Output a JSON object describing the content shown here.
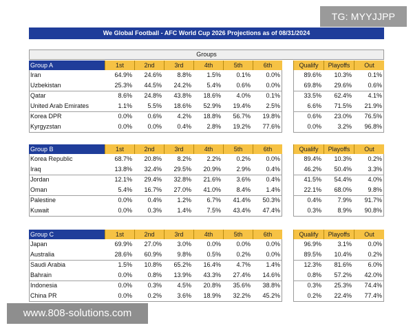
{
  "title": "We Global Football - AFC World Cup 2026 Projections as of 08/31/2024",
  "groups_label": "Groups",
  "columns": [
    "1st",
    "2nd",
    "3rd",
    "4th",
    "5th",
    "6th"
  ],
  "summary_columns": [
    "Qualify",
    "Playoffs",
    "Out"
  ],
  "watermarks": {
    "top_right": "TG: MYYJJPP",
    "bottom_left": "www.808-solutions.com"
  },
  "groups": [
    {
      "name": "Group A",
      "teams": [
        {
          "name": "Iran",
          "places": [
            "64.9%",
            "24.6%",
            "8.8%",
            "1.5%",
            "0.1%",
            "0.0%"
          ],
          "summary": [
            "89.6%",
            "10.3%",
            "0.1%"
          ]
        },
        {
          "name": "Uzbekistan",
          "places": [
            "25.3%",
            "44.5%",
            "24.2%",
            "5.4%",
            "0.6%",
            "0.0%"
          ],
          "summary": [
            "69.8%",
            "29.6%",
            "0.6%"
          ]
        },
        {
          "name": "Qatar",
          "places": [
            "8.6%",
            "24.8%",
            "43.8%",
            "18.6%",
            "4.0%",
            "0.1%"
          ],
          "summary": [
            "33.5%",
            "62.4%",
            "4.1%"
          ]
        },
        {
          "name": "United Arab Emirates",
          "places": [
            "1.1%",
            "5.5%",
            "18.6%",
            "52.9%",
            "19.4%",
            "2.5%"
          ],
          "summary": [
            "6.6%",
            "71.5%",
            "21.9%"
          ]
        },
        {
          "name": "Korea DPR",
          "places": [
            "0.0%",
            "0.6%",
            "4.2%",
            "18.8%",
            "56.7%",
            "19.8%"
          ],
          "summary": [
            "0.6%",
            "23.0%",
            "76.5%"
          ]
        },
        {
          "name": "Kyrgyzstan",
          "places": [
            "0.0%",
            "0.0%",
            "0.4%",
            "2.8%",
            "19.2%",
            "77.6%"
          ],
          "summary": [
            "0.0%",
            "3.2%",
            "96.8%"
          ]
        }
      ]
    },
    {
      "name": "Group B",
      "teams": [
        {
          "name": "Korea Republic",
          "places": [
            "68.7%",
            "20.8%",
            "8.2%",
            "2.2%",
            "0.2%",
            "0.0%"
          ],
          "summary": [
            "89.4%",
            "10.3%",
            "0.2%"
          ]
        },
        {
          "name": "Iraq",
          "places": [
            "13.8%",
            "32.4%",
            "29.5%",
            "20.9%",
            "2.9%",
            "0.4%"
          ],
          "summary": [
            "46.2%",
            "50.4%",
            "3.3%"
          ]
        },
        {
          "name": "Jordan",
          "places": [
            "12.1%",
            "29.4%",
            "32.8%",
            "21.6%",
            "3.6%",
            "0.4%"
          ],
          "summary": [
            "41.5%",
            "54.4%",
            "4.0%"
          ]
        },
        {
          "name": "Oman",
          "places": [
            "5.4%",
            "16.7%",
            "27.0%",
            "41.0%",
            "8.4%",
            "1.4%"
          ],
          "summary": [
            "22.1%",
            "68.0%",
            "9.8%"
          ]
        },
        {
          "name": "Palestine",
          "places": [
            "0.0%",
            "0.4%",
            "1.2%",
            "6.7%",
            "41.4%",
            "50.3%"
          ],
          "summary": [
            "0.4%",
            "7.9%",
            "91.7%"
          ]
        },
        {
          "name": "Kuwait",
          "places": [
            "0.0%",
            "0.3%",
            "1.4%",
            "7.5%",
            "43.4%",
            "47.4%"
          ],
          "summary": [
            "0.3%",
            "8.9%",
            "90.8%"
          ]
        }
      ]
    },
    {
      "name": "Group C",
      "teams": [
        {
          "name": "Japan",
          "places": [
            "69.9%",
            "27.0%",
            "3.0%",
            "0.0%",
            "0.0%",
            "0.0%"
          ],
          "summary": [
            "96.9%",
            "3.1%",
            "0.0%"
          ]
        },
        {
          "name": "Australia",
          "places": [
            "28.6%",
            "60.9%",
            "9.8%",
            "0.5%",
            "0.2%",
            "0.0%"
          ],
          "summary": [
            "89.5%",
            "10.4%",
            "0.2%"
          ]
        },
        {
          "name": "Saudi Arabia",
          "places": [
            "1.5%",
            "10.8%",
            "65.2%",
            "16.4%",
            "4.7%",
            "1.4%"
          ],
          "summary": [
            "12.3%",
            "81.6%",
            "6.0%"
          ]
        },
        {
          "name": "Bahrain",
          "places": [
            "0.0%",
            "0.8%",
            "13.9%",
            "43.3%",
            "27.4%",
            "14.6%"
          ],
          "summary": [
            "0.8%",
            "57.2%",
            "42.0%"
          ]
        },
        {
          "name": "Indonesia",
          "places": [
            "0.0%",
            "0.3%",
            "4.5%",
            "20.8%",
            "35.6%",
            "38.8%"
          ],
          "summary": [
            "0.3%",
            "25.3%",
            "74.4%"
          ]
        },
        {
          "name": "China PR",
          "places": [
            "0.0%",
            "0.2%",
            "3.6%",
            "18.9%",
            "32.2%",
            "45.2%"
          ],
          "summary": [
            "0.2%",
            "22.4%",
            "77.4%"
          ]
        }
      ]
    }
  ]
}
